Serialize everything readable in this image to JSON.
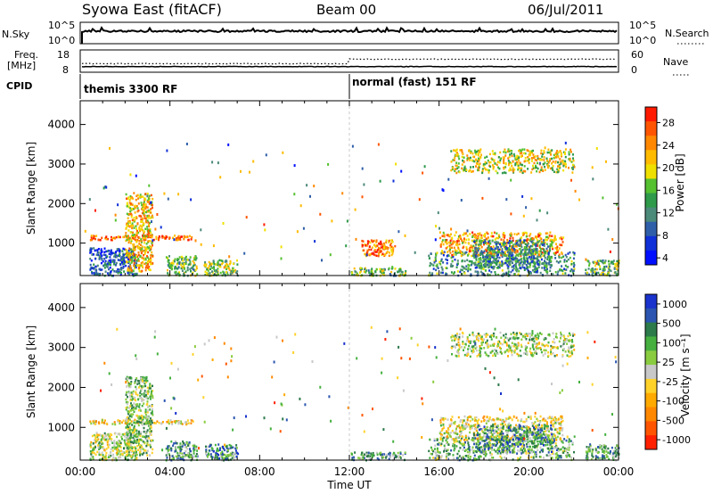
{
  "header": {
    "title": "Syowa East (fitACF)",
    "beam": "Beam 00",
    "date": "06/Jul/2011"
  },
  "top_panels": {
    "nsky_label": "N.Sky",
    "nsky_ticks": [
      "10^5",
      "10^0"
    ],
    "nsearch_label": "N.Search",
    "nsearch_ticks": [
      "10^5",
      "10^0"
    ],
    "freq_label": "Freq.",
    "freq_unit": "[MHz]",
    "freq_ticks": [
      "18",
      "8"
    ],
    "nave_label": "Nave",
    "nave_ticks": [
      "60",
      "0"
    ],
    "cpid_label": "CPID",
    "cpid_segments": [
      {
        "label": "themis 3300 RF",
        "start": 0
      },
      {
        "label": "normal (fast) 151 RF",
        "start": 12
      }
    ]
  },
  "chart_data": [
    {
      "type": "heatmap",
      "quantity": "Power",
      "xlabel": "",
      "ylabel": "Slant Range [km]",
      "xlim": [
        0,
        24
      ],
      "ylim": [
        180,
        4600
      ],
      "yticks": [
        1000,
        2000,
        3000,
        4000
      ],
      "colorbar": {
        "label": "Power [dB]",
        "ticks": [
          "28",
          "24",
          "20",
          "16",
          "12",
          "8",
          "4"
        ],
        "colors": [
          "#ff1a00",
          "#ff5500",
          "#ff8800",
          "#ffbb00",
          "#f0e000",
          "#55c030",
          "#2e9a4a",
          "#4c8a7a",
          "#2f5fa8",
          "#1030d8",
          "#0010ff"
        ]
      },
      "regions": [
        {
          "t0": 0.4,
          "t1": 2.5,
          "r0": 200,
          "r1": 900,
          "level": 0.8
        },
        {
          "t0": 0.4,
          "t1": 5.0,
          "r0": 1100,
          "r1": 1220,
          "level": 0.1
        },
        {
          "t0": 2.0,
          "t1": 3.2,
          "r0": 300,
          "r1": 2300,
          "level": 0.3
        },
        {
          "t0": 3.8,
          "t1": 5.2,
          "r0": 200,
          "r1": 700,
          "level": 0.55
        },
        {
          "t0": 5.5,
          "t1": 7.0,
          "r0": 200,
          "r1": 600,
          "level": 0.5
        },
        {
          "t0": 12.0,
          "t1": 14.5,
          "r0": 200,
          "r1": 400,
          "level": 0.55
        },
        {
          "t0": 12.5,
          "t1": 14.0,
          "r0": 700,
          "r1": 1100,
          "level": 0.15
        },
        {
          "t0": 15.5,
          "t1": 22.0,
          "r0": 200,
          "r1": 800,
          "level": 0.65
        },
        {
          "t0": 16.0,
          "t1": 21.5,
          "r0": 700,
          "r1": 1300,
          "level": 0.25
        },
        {
          "t0": 17.5,
          "t1": 21.0,
          "r0": 400,
          "r1": 1100,
          "level": 0.7
        },
        {
          "t0": 16.5,
          "t1": 22.0,
          "r0": 2800,
          "r1": 3400,
          "level": 0.4
        },
        {
          "t0": 22.5,
          "t1": 24.0,
          "r0": 200,
          "r1": 600,
          "level": 0.55
        }
      ]
    },
    {
      "type": "heatmap",
      "quantity": "Velocity",
      "xlabel": "Time UT",
      "ylabel": "Slant Range [km]",
      "xlim": [
        0,
        24
      ],
      "ylim": [
        180,
        4600
      ],
      "yticks": [
        1000,
        2000,
        3000,
        4000
      ],
      "xticks": [
        "00:00",
        "04:00",
        "08:00",
        "12:00",
        "16:00",
        "20:00",
        "00:00"
      ],
      "colorbar": {
        "label": "Velocity [m s⁻¹]",
        "ticks": [
          "1000",
          "500",
          "100",
          "25",
          "-25",
          "-100",
          "-500",
          "-1000"
        ],
        "colors": [
          "#1a33cc",
          "#2b55b0",
          "#2d7a4a",
          "#45b040",
          "#8acc40",
          "#c8c8c8",
          "#ffd22a",
          "#ffaa00",
          "#ff8800",
          "#ff5500",
          "#ff2000"
        ]
      },
      "regions": [
        {
          "t0": 0.4,
          "t1": 2.5,
          "r0": 200,
          "r1": 900,
          "level": 0.45
        },
        {
          "t0": 0.4,
          "t1": 5.0,
          "r0": 1100,
          "r1": 1220,
          "level": 0.6
        },
        {
          "t0": 2.0,
          "t1": 3.2,
          "r0": 300,
          "r1": 2300,
          "level": 0.4
        },
        {
          "t0": 3.8,
          "t1": 5.2,
          "r0": 200,
          "r1": 700,
          "level": 0.3
        },
        {
          "t0": 5.5,
          "t1": 7.0,
          "r0": 200,
          "r1": 600,
          "level": 0.25
        },
        {
          "t0": 12.0,
          "t1": 14.5,
          "r0": 200,
          "r1": 400,
          "level": 0.3
        },
        {
          "t0": 15.5,
          "t1": 22.0,
          "r0": 200,
          "r1": 800,
          "level": 0.35
        },
        {
          "t0": 16.0,
          "t1": 21.5,
          "r0": 700,
          "r1": 1300,
          "level": 0.55
        },
        {
          "t0": 17.5,
          "t1": 21.0,
          "r0": 400,
          "r1": 1100,
          "level": 0.25
        },
        {
          "t0": 16.5,
          "t1": 22.0,
          "r0": 2800,
          "r1": 3400,
          "level": 0.45
        },
        {
          "t0": 22.5,
          "t1": 24.0,
          "r0": 200,
          "r1": 600,
          "level": 0.3
        }
      ]
    }
  ]
}
